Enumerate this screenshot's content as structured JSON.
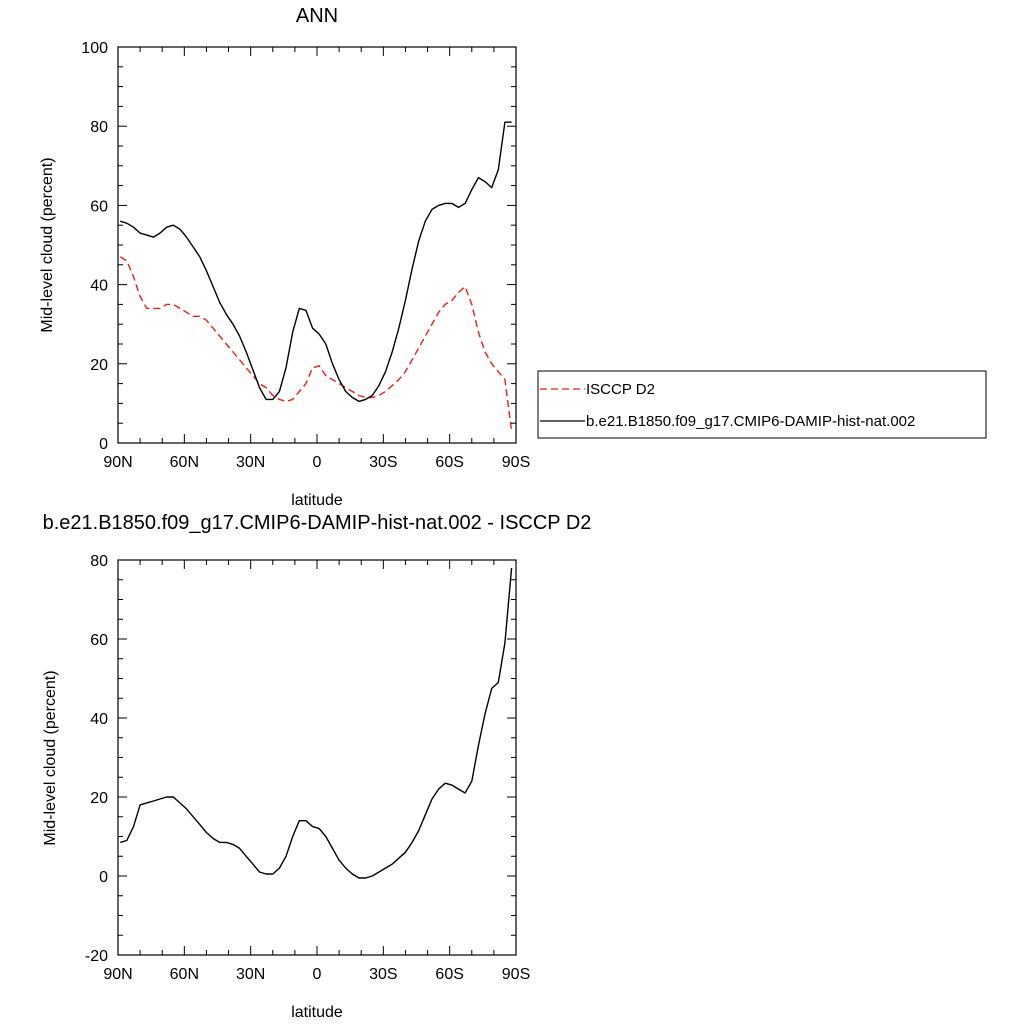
{
  "chart_data": [
    {
      "type": "line",
      "title": "ANN",
      "xlabel": "latitude",
      "ylabel": "Mid-level cloud (percent)",
      "xlim": [
        90,
        -90
      ],
      "ylim": [
        0,
        100
      ],
      "xticks": [
        90,
        60,
        30,
        0,
        -30,
        -60,
        -90
      ],
      "xtick_labels": [
        "90N",
        "60N",
        "30N",
        "0",
        "30S",
        "60S",
        "90S"
      ],
      "yticks": [
        0,
        20,
        40,
        60,
        80,
        100
      ],
      "ytick_labels": [
        "0",
        "20",
        "40",
        "60",
        "80",
        "100"
      ],
      "grid": false,
      "legend_position": "right",
      "series": [
        {
          "name": "ISCCP D2",
          "color": "#e8201a",
          "dash": "dashed",
          "x": [
            89,
            86,
            83,
            80,
            77,
            74,
            71,
            68,
            65,
            62,
            59,
            56,
            53,
            50,
            47,
            44,
            41,
            38,
            35,
            32,
            29,
            26,
            23,
            20,
            17,
            14,
            11,
            8,
            5,
            2,
            -1,
            -4,
            -7,
            -10,
            -13,
            -16,
            -19,
            -22,
            -25,
            -28,
            -31,
            -34,
            -37,
            -40,
            -43,
            -46,
            -49,
            -52,
            -55,
            -58,
            -61,
            -64,
            -67,
            -70,
            -73,
            -76,
            -79,
            -82,
            -85,
            -88
          ],
          "y": [
            47,
            46,
            42,
            37,
            34,
            34,
            34,
            35,
            35,
            34,
            33,
            32,
            32,
            31,
            29,
            27,
            25,
            23,
            21,
            19,
            17,
            15,
            14,
            12,
            11,
            10.5,
            11,
            13,
            15,
            19,
            19.5,
            17,
            16,
            15,
            14,
            13,
            12,
            11.5,
            11.5,
            12,
            13,
            14.5,
            16,
            18,
            21,
            24,
            27,
            30,
            33,
            35,
            36,
            38,
            39.5,
            35,
            28,
            23,
            20,
            18,
            16,
            3
          ]
        },
        {
          "name": "b.e21.B1850.f09_g17.CMIP6-DAMIP-hist-nat.002",
          "color": "#000000",
          "dash": "solid",
          "x": [
            89,
            86,
            83,
            80,
            77,
            74,
            71,
            68,
            65,
            62,
            59,
            56,
            53,
            50,
            47,
            44,
            41,
            38,
            35,
            32,
            29,
            26,
            23,
            20,
            17,
            14,
            11,
            8,
            5,
            2,
            -1,
            -4,
            -7,
            -10,
            -13,
            -16,
            -19,
            -22,
            -25,
            -28,
            -31,
            -34,
            -37,
            -40,
            -43,
            -46,
            -49,
            -52,
            -55,
            -58,
            -61,
            -64,
            -67,
            -70,
            -73,
            -76,
            -79,
            -82,
            -85,
            -88
          ],
          "y": [
            56,
            55.5,
            54.5,
            53,
            52.5,
            52,
            53,
            54.5,
            55,
            54,
            52,
            49.5,
            47,
            43.5,
            39.5,
            35.5,
            32.5,
            30,
            27,
            23,
            18.5,
            14,
            11,
            11,
            13,
            19,
            28,
            34,
            33.5,
            29,
            27.5,
            25,
            20,
            16,
            13,
            11.5,
            10.5,
            11,
            12,
            14.5,
            18,
            23,
            29,
            36,
            44,
            51,
            56,
            59,
            60,
            60.5,
            60.5,
            59.5,
            60.5,
            64,
            67,
            66,
            64.5,
            69,
            81,
            81
          ]
        }
      ]
    },
    {
      "type": "line",
      "title": "b.e21.B1850.f09_g17.CMIP6-DAMIP-hist-nat.002 - ISCCP D2",
      "xlabel": "latitude",
      "ylabel": "Mid-level cloud (percent)",
      "xlim": [
        90,
        -90
      ],
      "ylim": [
        -20,
        80
      ],
      "xticks": [
        90,
        60,
        30,
        0,
        -30,
        -60,
        -90
      ],
      "xtick_labels": [
        "90N",
        "60N",
        "30N",
        "0",
        "30S",
        "60S",
        "90S"
      ],
      "yticks": [
        -20,
        0,
        20,
        40,
        60,
        80
      ],
      "ytick_labels": [
        "-20",
        "0",
        "20",
        "40",
        "60",
        "80"
      ],
      "grid": false,
      "series": [
        {
          "color": "#000000",
          "dash": "solid",
          "x": [
            89,
            86,
            83,
            80,
            77,
            74,
            71,
            68,
            65,
            62,
            59,
            56,
            53,
            50,
            47,
            44,
            41,
            38,
            35,
            32,
            29,
            26,
            23,
            20,
            17,
            14,
            11,
            8,
            5,
            2,
            -1,
            -4,
            -7,
            -10,
            -13,
            -16,
            -19,
            -22,
            -25,
            -28,
            -31,
            -34,
            -37,
            -40,
            -43,
            -46,
            -49,
            -52,
            -55,
            -58,
            -61,
            -64,
            -67,
            -70,
            -73,
            -76,
            -79,
            -82,
            -85,
            -88
          ],
          "y": [
            8.5,
            9,
            12.5,
            18,
            18.5,
            19,
            19.5,
            20,
            20,
            18.5,
            17,
            15,
            13,
            11,
            9.5,
            8.5,
            8.5,
            8,
            7,
            5,
            3,
            1,
            0.5,
            0.5,
            2,
            5,
            10,
            14,
            14,
            12.5,
            12,
            10,
            7,
            4,
            2,
            0.5,
            -0.5,
            -0.5,
            0,
            1,
            2,
            3,
            4.5,
            6,
            8.5,
            11.5,
            15.5,
            19.5,
            22,
            23.5,
            23,
            22,
            21,
            24,
            33,
            41,
            47.5,
            49,
            59,
            78
          ]
        }
      ]
    }
  ]
}
